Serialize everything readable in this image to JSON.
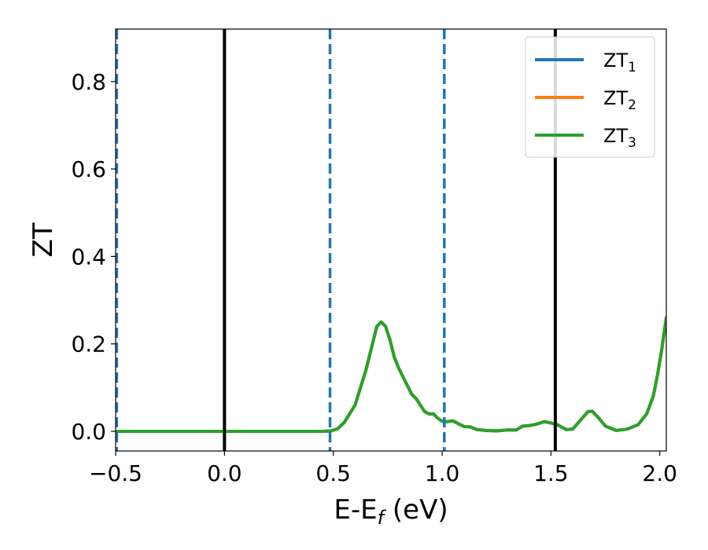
{
  "chart_data": {
    "type": "line",
    "title": "",
    "xlabel": "E-E",
    "xlabel_sub": "f",
    "xlabel_suffix": " (eV)",
    "ylabel": "ZT",
    "xlim": [
      -0.5,
      2.03
    ],
    "ylim": [
      -0.045,
      0.92
    ],
    "xticks": [
      -0.5,
      0.0,
      0.5,
      1.0,
      1.5,
      2.0
    ],
    "xtick_labels": [
      "−0.5",
      "0.0",
      "0.5",
      "1.0",
      "1.5",
      "2.0"
    ],
    "yticks": [
      0.0,
      0.2,
      0.4,
      0.6,
      0.8
    ],
    "ytick_labels": [
      "0.0",
      "0.2",
      "0.4",
      "0.6",
      "0.8"
    ],
    "grid": false,
    "legend_position": "top-right",
    "vlines": [
      {
        "x": -0.495,
        "style": "dashed",
        "color": "#1f77b4"
      },
      {
        "x": 0.0,
        "style": "solid",
        "color": "#000000"
      },
      {
        "x": 0.485,
        "style": "dashed",
        "color": "#1f77b4"
      },
      {
        "x": 1.01,
        "style": "dashed",
        "color": "#1f77b4"
      },
      {
        "x": 1.52,
        "style": "solid",
        "color": "#000000"
      }
    ],
    "x": [
      -0.5,
      0.0,
      0.45,
      0.49,
      0.52,
      0.55,
      0.6,
      0.65,
      0.68,
      0.7,
      0.72,
      0.74,
      0.76,
      0.78,
      0.8,
      0.83,
      0.86,
      0.88,
      0.9,
      0.92,
      0.94,
      0.96,
      0.98,
      1.0,
      1.02,
      1.05,
      1.08,
      1.1,
      1.13,
      1.16,
      1.2,
      1.25,
      1.3,
      1.34,
      1.37,
      1.4,
      1.43,
      1.47,
      1.5,
      1.53,
      1.57,
      1.6,
      1.64,
      1.67,
      1.69,
      1.72,
      1.75,
      1.8,
      1.85,
      1.9,
      1.94,
      1.97,
      1.99,
      2.01,
      2.03
    ],
    "series": [
      {
        "name": "ZT",
        "sub": "1",
        "color": "#1f77b4",
        "values": [
          0.0,
          0.0,
          0.0,
          0.001,
          0.006,
          0.02,
          0.06,
          0.14,
          0.2,
          0.24,
          0.25,
          0.24,
          0.21,
          0.17,
          0.145,
          0.115,
          0.085,
          0.075,
          0.06,
          0.045,
          0.04,
          0.04,
          0.03,
          0.023,
          0.022,
          0.024,
          0.016,
          0.011,
          0.01,
          0.004,
          0.002,
          0.001,
          0.003,
          0.003,
          0.012,
          0.013,
          0.016,
          0.022,
          0.019,
          0.015,
          0.004,
          0.005,
          0.028,
          0.045,
          0.046,
          0.03,
          0.012,
          0.002,
          0.005,
          0.015,
          0.04,
          0.08,
          0.13,
          0.19,
          0.26
        ]
      },
      {
        "name": "ZT",
        "sub": "2",
        "color": "#ff7f0e",
        "values": [
          0.0,
          0.0,
          0.0,
          0.001,
          0.006,
          0.02,
          0.06,
          0.14,
          0.2,
          0.24,
          0.25,
          0.24,
          0.21,
          0.17,
          0.145,
          0.115,
          0.085,
          0.075,
          0.06,
          0.045,
          0.04,
          0.04,
          0.03,
          0.023,
          0.022,
          0.024,
          0.016,
          0.011,
          0.01,
          0.004,
          0.002,
          0.001,
          0.003,
          0.003,
          0.012,
          0.013,
          0.016,
          0.022,
          0.019,
          0.015,
          0.004,
          0.005,
          0.028,
          0.045,
          0.046,
          0.03,
          0.012,
          0.002,
          0.005,
          0.015,
          0.04,
          0.08,
          0.13,
          0.19,
          0.26
        ]
      },
      {
        "name": "ZT",
        "sub": "3",
        "color": "#2ca02c",
        "values": [
          0.0,
          0.0,
          0.0,
          0.001,
          0.006,
          0.02,
          0.06,
          0.14,
          0.2,
          0.24,
          0.25,
          0.24,
          0.21,
          0.17,
          0.145,
          0.115,
          0.085,
          0.075,
          0.06,
          0.045,
          0.04,
          0.04,
          0.03,
          0.023,
          0.022,
          0.024,
          0.016,
          0.011,
          0.01,
          0.004,
          0.002,
          0.001,
          0.003,
          0.003,
          0.012,
          0.013,
          0.016,
          0.022,
          0.019,
          0.015,
          0.004,
          0.005,
          0.028,
          0.045,
          0.046,
          0.03,
          0.012,
          0.002,
          0.005,
          0.015,
          0.04,
          0.08,
          0.13,
          0.19,
          0.26
        ]
      }
    ]
  }
}
